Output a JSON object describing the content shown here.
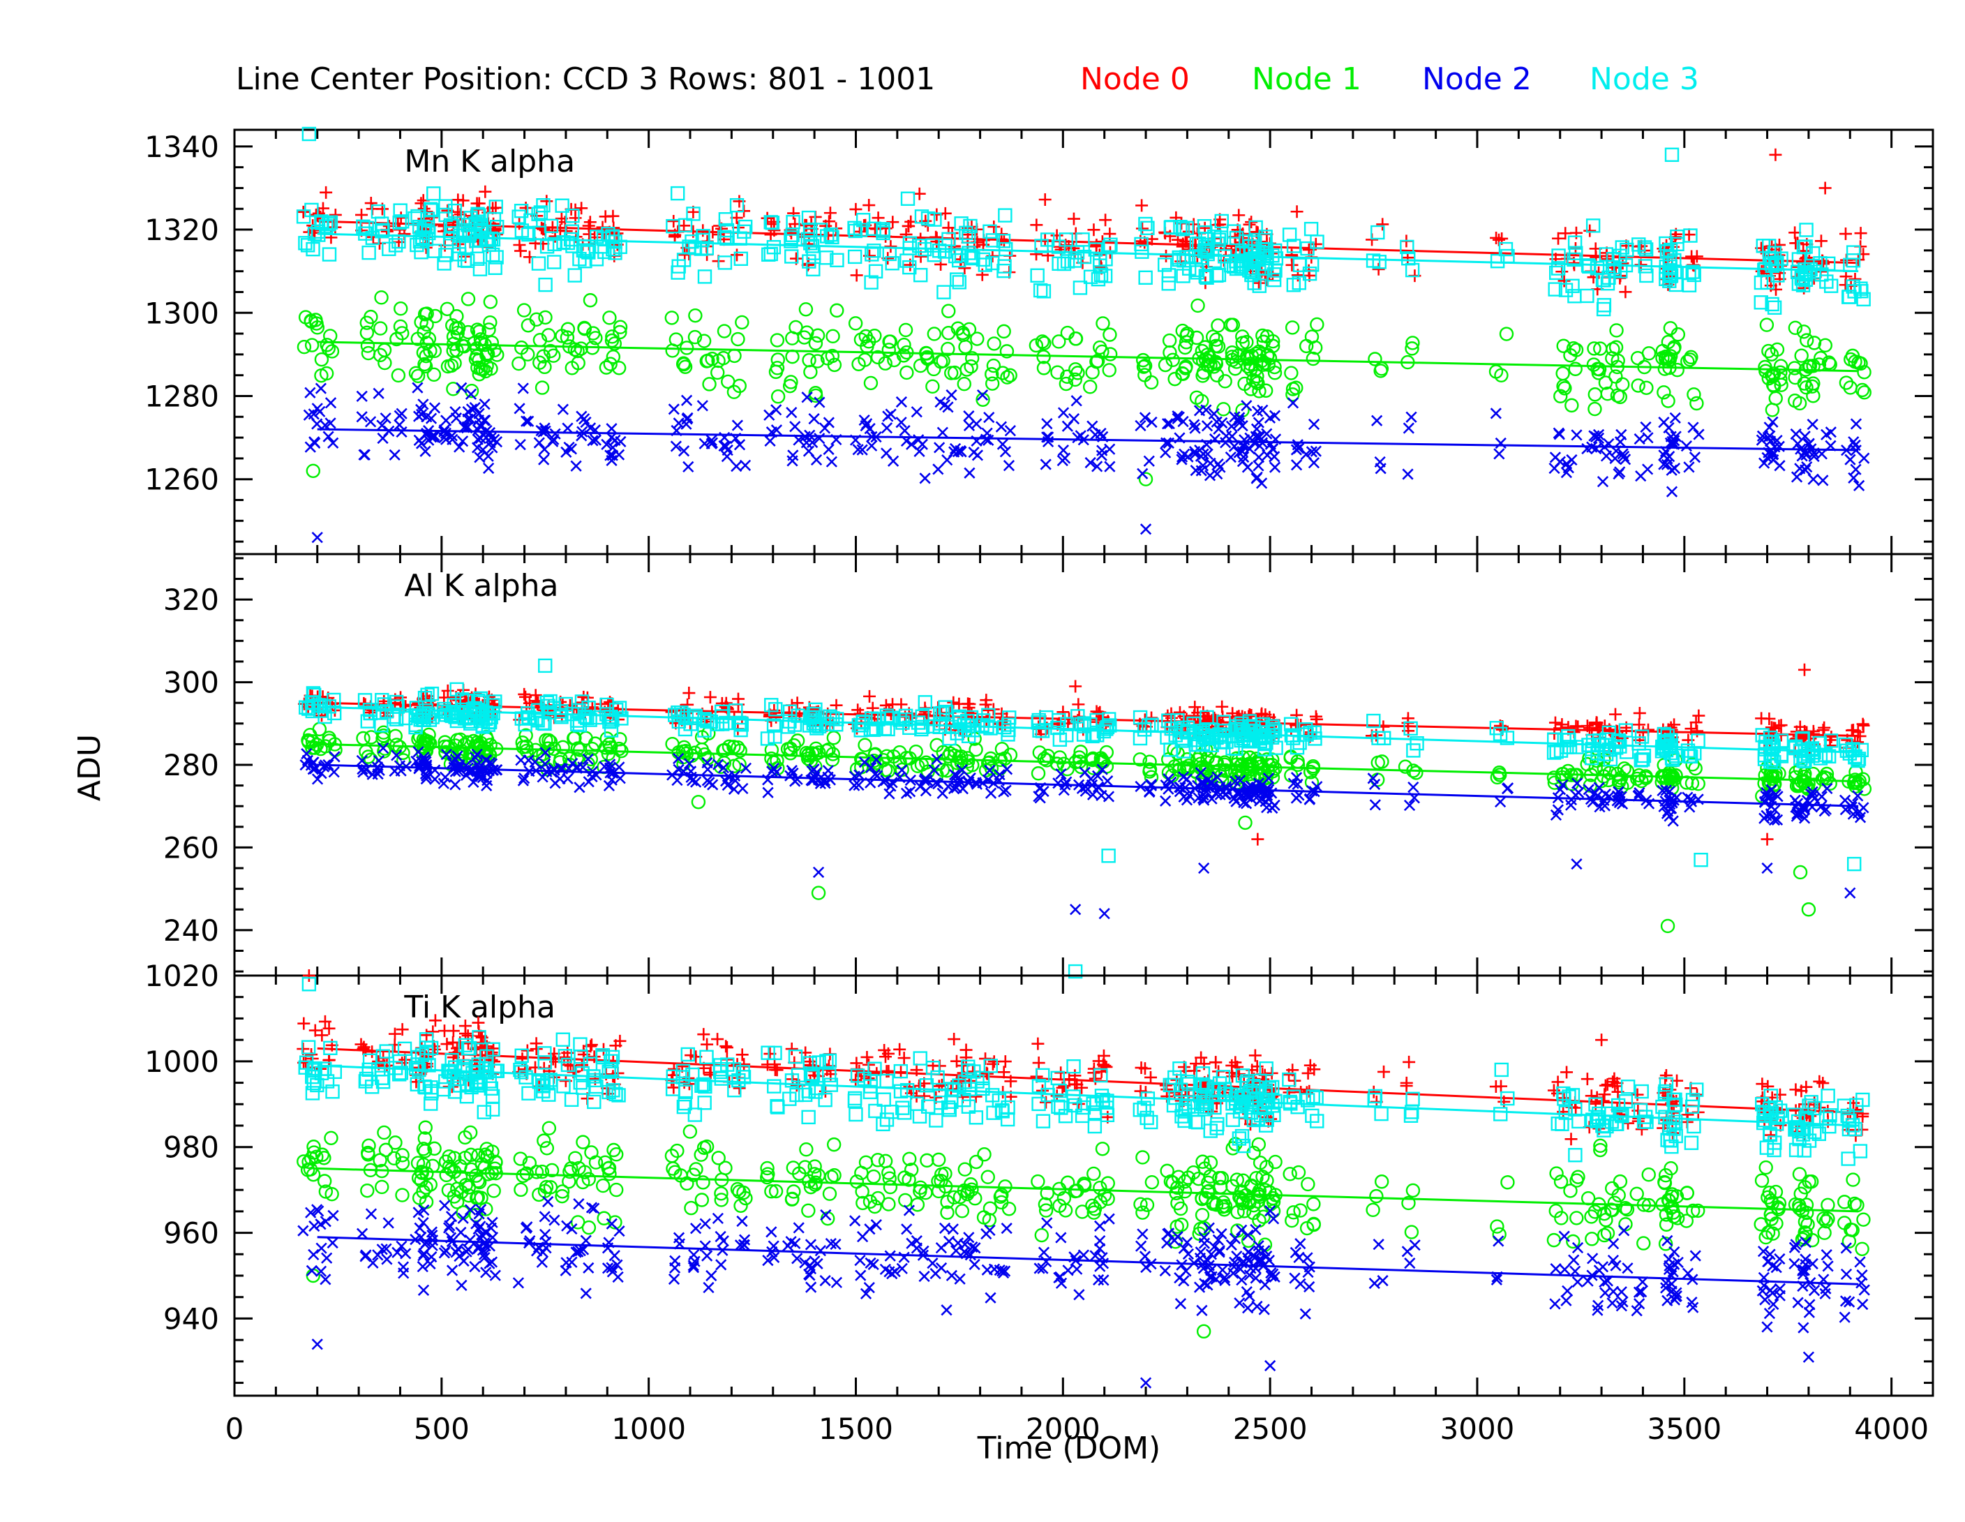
{
  "header": {
    "title": "Line Center Position: CCD 3 Rows: 801 - 1001",
    "legend": [
      {
        "label": "Node 0",
        "color": "#ff0000"
      },
      {
        "label": "Node 1",
        "color": "#00ee00"
      },
      {
        "label": "Node 2",
        "color": "#0000ee"
      },
      {
        "label": "Node 3",
        "color": "#00eeee"
      }
    ]
  },
  "axes": {
    "xlabel": "Time (DOM)",
    "ylabel": "ADU"
  },
  "chart_data": [
    {
      "type": "scatter",
      "panel_label": "Mn K alpha",
      "xlim": [
        0,
        4100
      ],
      "ylim": [
        1242,
        1344
      ],
      "yticks": [
        1260,
        1280,
        1300,
        1320,
        1340
      ],
      "xticks": [
        0,
        500,
        1000,
        1500,
        2000,
        2500,
        3000,
        3500,
        4000
      ],
      "series": [
        {
          "name": "Node 0",
          "marker": "plus",
          "color": "#ff0000",
          "fit": [
            [
              200,
              1322
            ],
            [
              3920,
              1312
            ]
          ],
          "spread": 6,
          "outliers": [
            [
              3720,
              1338
            ],
            [
              3840,
              1330
            ]
          ]
        },
        {
          "name": "Node 1",
          "marker": "circle",
          "color": "#00ee00",
          "fit": [
            [
              200,
              1293
            ],
            [
              3920,
              1286
            ]
          ],
          "spread": 8,
          "outliers": [
            [
              190,
              1262
            ],
            [
              2200,
              1260
            ]
          ]
        },
        {
          "name": "Node 2",
          "marker": "x",
          "color": "#0000ee",
          "fit": [
            [
              200,
              1272
            ],
            [
              3920,
              1267
            ]
          ],
          "spread": 7,
          "outliers": [
            [
              200,
              1246
            ],
            [
              2200,
              1248
            ],
            [
              3470,
              1257
            ]
          ]
        },
        {
          "name": "Node 3",
          "marker": "square",
          "color": "#00eeee",
          "fit": [
            [
              200,
              1319
            ],
            [
              3920,
              1310
            ]
          ],
          "spread": 7,
          "outliers": [
            [
              180,
              1343
            ],
            [
              3470,
              1338
            ]
          ]
        }
      ]
    },
    {
      "type": "scatter",
      "panel_label": "Al K alpha",
      "xlim": [
        0,
        4100
      ],
      "ylim": [
        229,
        331
      ],
      "yticks": [
        240,
        260,
        280,
        300,
        320
      ],
      "xticks": [
        0,
        500,
        1000,
        1500,
        2000,
        2500,
        3000,
        3500,
        4000
      ],
      "series": [
        {
          "name": "Node 0",
          "marker": "plus",
          "color": "#ff0000",
          "fit": [
            [
              200,
              295
            ],
            [
              3920,
              287
            ]
          ],
          "spread": 3,
          "outliers": [
            [
              2030,
              299
            ],
            [
              2470,
              262
            ],
            [
              3790,
              303
            ],
            [
              3700,
              262
            ]
          ]
        },
        {
          "name": "Node 1",
          "marker": "circle",
          "color": "#00ee00",
          "fit": [
            [
              200,
              285
            ],
            [
              3920,
              276
            ]
          ],
          "spread": 3,
          "outliers": [
            [
              1410,
              249
            ],
            [
              3460,
              241
            ],
            [
              3800,
              245
            ],
            [
              3780,
              254
            ],
            [
              2440,
              266
            ],
            [
              1120,
              271
            ]
          ]
        },
        {
          "name": "Node 2",
          "marker": "x",
          "color": "#0000ee",
          "fit": [
            [
              200,
              280
            ],
            [
              3920,
              270
            ]
          ],
          "spread": 3,
          "outliers": [
            [
              1410,
              254
            ],
            [
              2030,
              245
            ],
            [
              2100,
              244
            ],
            [
              2340,
              255
            ],
            [
              3240,
              256
            ],
            [
              3700,
              255
            ],
            [
              3900,
              249
            ]
          ]
        },
        {
          "name": "Node 3",
          "marker": "square",
          "color": "#00eeee",
          "fit": [
            [
              200,
              294
            ],
            [
              3920,
              283
            ]
          ],
          "spread": 3,
          "outliers": [
            [
              750,
              304
            ],
            [
              2110,
              258
            ],
            [
              3540,
              257
            ],
            [
              3910,
              256
            ],
            [
              2030,
              230
            ]
          ]
        }
      ]
    },
    {
      "type": "scatter",
      "panel_label": "Ti K alpha",
      "xlim": [
        0,
        4100
      ],
      "ylim": [
        922,
        1020
      ],
      "yticks": [
        940,
        960,
        980,
        1000,
        1020
      ],
      "xticks": [
        0,
        500,
        1000,
        1500,
        2000,
        2500,
        3000,
        3500,
        4000
      ],
      "series": [
        {
          "name": "Node 0",
          "marker": "plus",
          "color": "#ff0000",
          "fit": [
            [
              200,
              1003
            ],
            [
              3920,
              988
            ]
          ],
          "spread": 6,
          "outliers": [
            [
              180,
              1020
            ],
            [
              3300,
              1005
            ]
          ]
        },
        {
          "name": "Node 1",
          "marker": "circle",
          "color": "#00ee00",
          "fit": [
            [
              200,
              975
            ],
            [
              3920,
              965
            ]
          ],
          "spread": 8,
          "outliers": [
            [
              190,
              950
            ],
            [
              2340,
              937
            ]
          ]
        },
        {
          "name": "Node 2",
          "marker": "x",
          "color": "#0000ee",
          "fit": [
            [
              200,
              959
            ],
            [
              3920,
              948
            ]
          ],
          "spread": 8,
          "outliers": [
            [
              200,
              934
            ],
            [
              2200,
              925
            ],
            [
              2500,
              929
            ],
            [
              3800,
              931
            ]
          ]
        },
        {
          "name": "Node 3",
          "marker": "square",
          "color": "#00eeee",
          "fit": [
            [
              200,
              999
            ],
            [
              3920,
              985
            ]
          ],
          "spread": 6,
          "outliers": [
            [
              180,
              1018
            ]
          ]
        }
      ]
    }
  ]
}
